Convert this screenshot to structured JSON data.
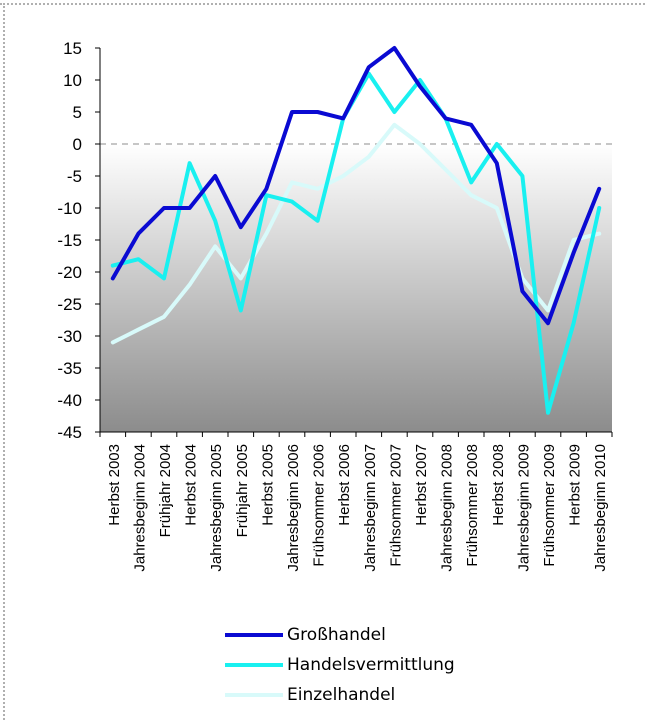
{
  "chart_data": {
    "type": "line",
    "categories": [
      "Herbst 2003",
      "Jahresbeginn 2004",
      "Frühjahr 2004",
      "Herbst 2004",
      "Jahresbeginn 2005",
      "Frühjahr 2005",
      "Herbst 2005",
      "Jahresbeginn 2006",
      "Frühsommer 2006",
      "Herbst 2006",
      "Jahresbeginn 2007",
      "Frühsommer 2007",
      "Herbst 2007",
      "Jahresbeginn 2008",
      "Frühsommer 2008",
      "Herbst 2008",
      "Jahresbeginn 2009",
      "Frühsommer 2009",
      "Herbst 2009",
      "Jahresbeginn 2010"
    ],
    "series": [
      {
        "name": "Großhandel",
        "color": "#0a0ad2",
        "values": [
          -21,
          -14,
          -10,
          -10,
          -5,
          -13,
          -7,
          5,
          5,
          4,
          12,
          15,
          9,
          4,
          3,
          -3,
          -23,
          -28,
          -17,
          -7
        ]
      },
      {
        "name": "Handelsvermittlung",
        "color": "#19f0f0",
        "values": [
          -19,
          -18,
          -21,
          -3,
          -12,
          -26,
          -8,
          -9,
          -12,
          4,
          11,
          5,
          10,
          4,
          -6,
          0,
          -5,
          -42,
          -28,
          -10
        ]
      },
      {
        "name": "Einzelhandel",
        "color": "#d8fafa",
        "values": [
          -31,
          -29,
          -27,
          -22,
          -16,
          -21,
          -14,
          -6,
          -7,
          -5,
          -2,
          3,
          0,
          -4,
          -8,
          -10,
          -21,
          -26,
          -15,
          -14
        ]
      }
    ],
    "ylim": [
      -45,
      15
    ],
    "yticks": [
      15,
      10,
      5,
      0,
      -5,
      -10,
      -15,
      -20,
      -25,
      -30,
      -35,
      -40,
      -45
    ],
    "zero_line": "dashed",
    "background": "gradient white to grey",
    "legend": "bottom"
  }
}
